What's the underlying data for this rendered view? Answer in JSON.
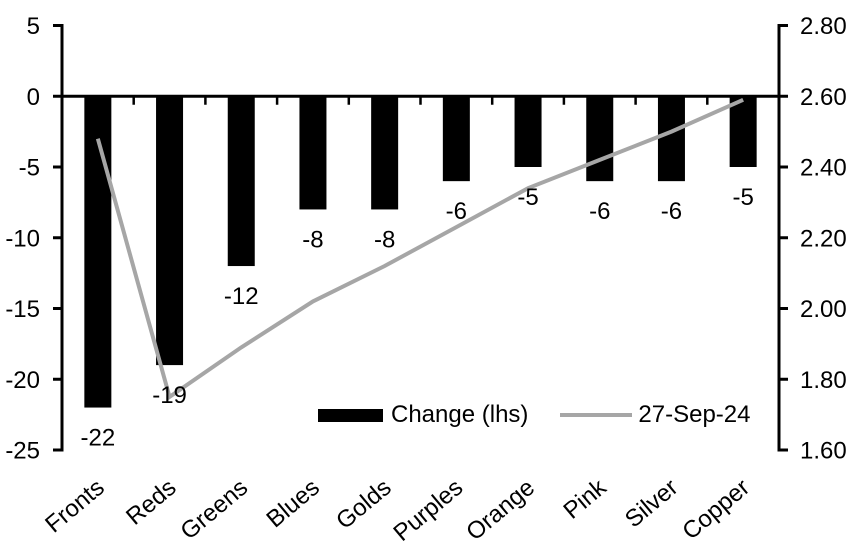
{
  "chart_data": {
    "type": "bar",
    "subtype": "bar+line combo, dual axis",
    "title": "",
    "categories": [
      "Fronts",
      "Reds",
      "Greens",
      "Blues",
      "Golds",
      "Purples",
      "Orange",
      "Pink",
      "Silver",
      "Copper"
    ],
    "series": [
      {
        "name": "Change (lhs)",
        "type": "bar",
        "axis": "left",
        "color": "#000000",
        "values": [
          -22,
          -19,
          -12,
          -8,
          -8,
          -6,
          -5,
          -6,
          -6,
          -5
        ],
        "data_labels": [
          "-22",
          "-19",
          "-12",
          "-8",
          "-8",
          "-6",
          "-5",
          "-6",
          "-6",
          "-5"
        ]
      },
      {
        "name": "27-Sep-24",
        "type": "line",
        "axis": "right",
        "color": "#A6A6A6",
        "values": [
          2.48,
          1.75,
          1.89,
          2.02,
          2.12,
          2.23,
          2.34,
          2.42,
          2.5,
          2.59
        ]
      }
    ],
    "left_axis": {
      "min": -25,
      "max": 5,
      "ticks": [
        5,
        0,
        -5,
        -10,
        -15,
        -20,
        -25
      ]
    },
    "right_axis": {
      "min": 1.6,
      "max": 2.8,
      "ticks": [
        "2.80",
        "2.60",
        "2.40",
        "2.20",
        "2.00",
        "1.80",
        "1.60"
      ]
    },
    "grid": "off",
    "legend_position": "bottom-center-inside"
  },
  "legend": {
    "bar_label": "Change (lhs)",
    "line_label": "27-Sep-24"
  },
  "colors": {
    "bar": "#000000",
    "line": "#A6A6A6",
    "axis": "#000000",
    "background": "#FFFFFF"
  }
}
